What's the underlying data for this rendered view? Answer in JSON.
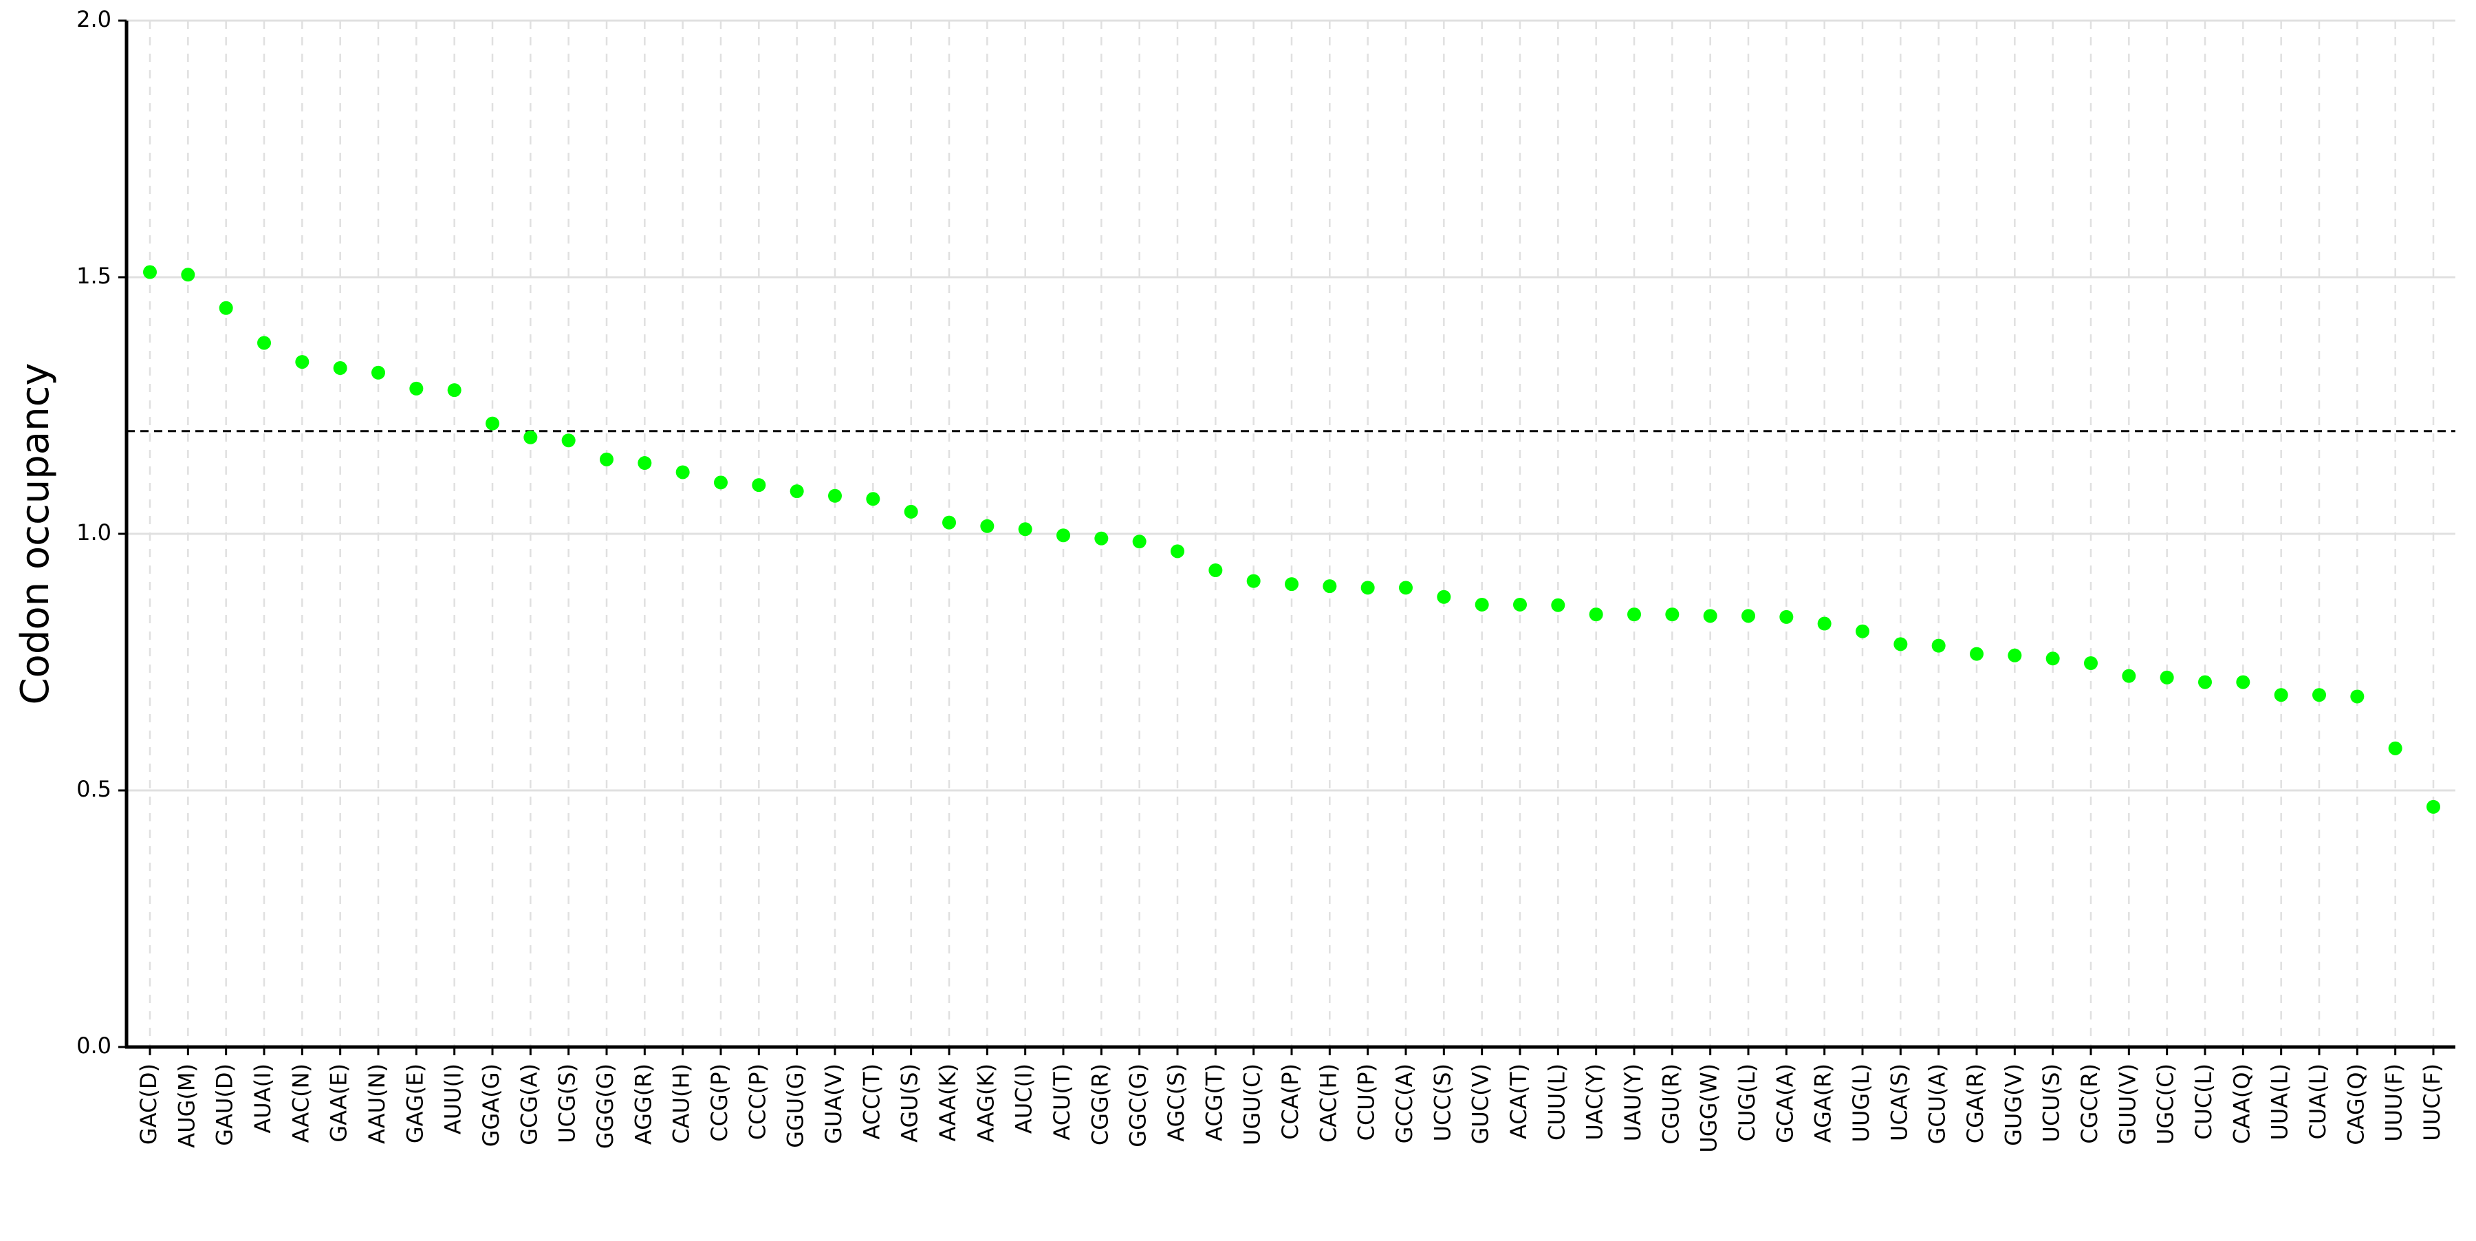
{
  "chart_data": {
    "type": "scatter",
    "ylabel": "Codon occupancy",
    "categories": [
      "GAC(D)",
      "AUG(M)",
      "GAU(D)",
      "AUA(I)",
      "AAC(N)",
      "GAA(E)",
      "AAU(N)",
      "GAG(E)",
      "AUU(I)",
      "GGA(G)",
      "GCG(A)",
      "UCG(S)",
      "GGG(G)",
      "AGG(R)",
      "CAU(H)",
      "CCG(P)",
      "CCC(P)",
      "GGU(G)",
      "GUA(V)",
      "ACC(T)",
      "AGU(S)",
      "AAA(K)",
      "AAG(K)",
      "AUC(I)",
      "ACU(T)",
      "CGG(R)",
      "GGC(G)",
      "AGC(S)",
      "ACG(T)",
      "UGU(C)",
      "CCA(P)",
      "CAC(H)",
      "CCU(P)",
      "GCC(A)",
      "UCC(S)",
      "GUC(V)",
      "ACA(T)",
      "CUU(L)",
      "UAC(Y)",
      "UAU(Y)",
      "CGU(R)",
      "UGG(W)",
      "CUG(L)",
      "GCA(A)",
      "AGA(R)",
      "UUG(L)",
      "UCA(S)",
      "GCU(A)",
      "CGA(R)",
      "GUG(V)",
      "UCU(S)",
      "CGC(R)",
      "GUU(V)",
      "UGC(C)",
      "CUC(L)",
      "CAA(Q)",
      "UUA(L)",
      "CUA(L)",
      "CAG(Q)",
      "UUU(F)",
      "UUC(F)"
    ],
    "values": [
      1.51,
      1.505,
      1.44,
      1.372,
      1.335,
      1.323,
      1.314,
      1.283,
      1.28,
      1.215,
      1.188,
      1.182,
      1.145,
      1.138,
      1.12,
      1.1,
      1.095,
      1.083,
      1.074,
      1.068,
      1.043,
      1.022,
      1.015,
      1.009,
      0.997,
      0.991,
      0.985,
      0.966,
      0.929,
      0.908,
      0.902,
      0.898,
      0.895,
      0.895,
      0.877,
      0.862,
      0.862,
      0.861,
      0.843,
      0.843,
      0.843,
      0.84,
      0.84,
      0.838,
      0.825,
      0.81,
      0.785,
      0.782,
      0.766,
      0.763,
      0.757,
      0.748,
      0.723,
      0.72,
      0.711,
      0.711,
      0.686,
      0.686,
      0.683,
      0.582,
      0.468
    ],
    "color": "#00ff00",
    "threshold": 1.2,
    "ylim": [
      0,
      2
    ],
    "yticks": [
      {
        "value": 0,
        "label": "0.0"
      },
      0.5,
      {
        "value": 1,
        "label": "1.0"
      },
      1.5,
      {
        "value": 2,
        "label": "2.0"
      }
    ],
    "grid": true
  }
}
